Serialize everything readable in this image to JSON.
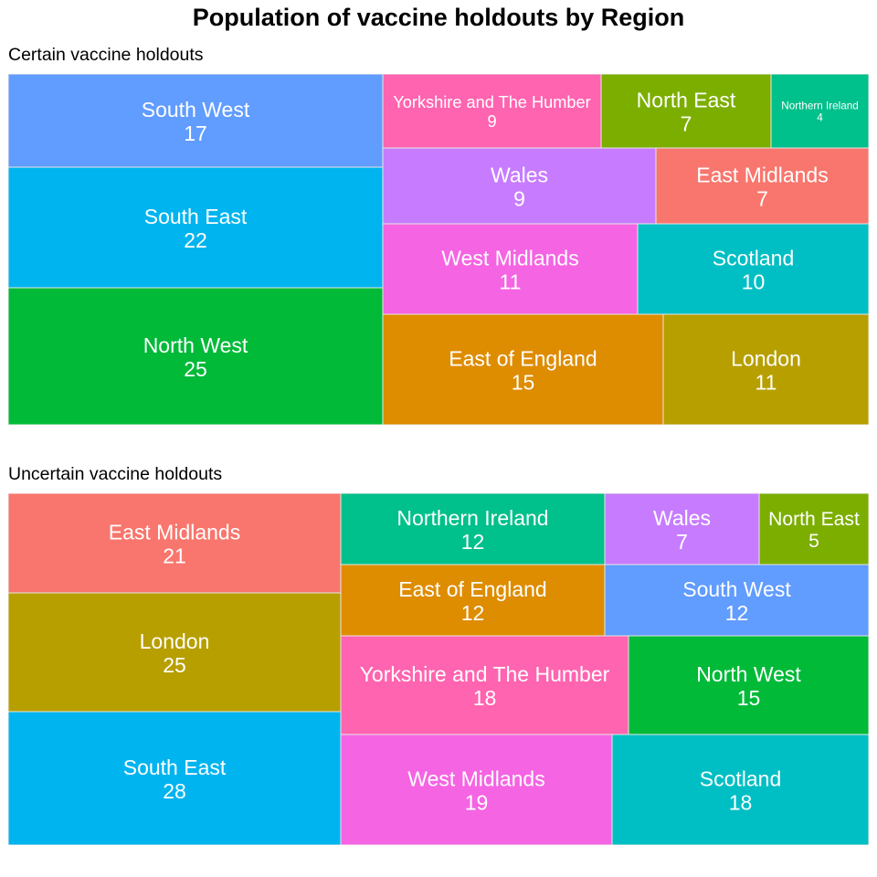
{
  "chart_data": {
    "type": "treemap",
    "title": "Population of vaccine holdouts by Region",
    "label_color": "#FFFFFF",
    "border_color": "#E6E6E6",
    "panels": [
      {
        "name": "Certain vaccine holdouts",
        "items": [
          {
            "region": "South West",
            "value": 17,
            "color": "#619CFF"
          },
          {
            "region": "South East",
            "value": 22,
            "color": "#00B4EF"
          },
          {
            "region": "North West",
            "value": 25,
            "color": "#00BA38"
          },
          {
            "region": "Yorkshire and The Humber",
            "value": 9,
            "color": "#FF64B0"
          },
          {
            "region": "Wales",
            "value": 9,
            "color": "#C77CFF"
          },
          {
            "region": "West Midlands",
            "value": 11,
            "color": "#F564E3"
          },
          {
            "region": "East of England",
            "value": 15,
            "color": "#DE8C00"
          },
          {
            "region": "North East",
            "value": 7,
            "color": "#7CAE00"
          },
          {
            "region": "Northern Ireland",
            "value": 4,
            "color": "#00C08B"
          },
          {
            "region": "East Midlands",
            "value": 7,
            "color": "#F8766D"
          },
          {
            "region": "Scotland",
            "value": 10,
            "color": "#00BFC4"
          },
          {
            "region": "London",
            "value": 11,
            "color": "#B79F00"
          }
        ]
      },
      {
        "name": "Uncertain vaccine holdouts",
        "items": [
          {
            "region": "East Midlands",
            "value": 21,
            "color": "#F8766D"
          },
          {
            "region": "London",
            "value": 25,
            "color": "#B79F00"
          },
          {
            "region": "South East",
            "value": 28,
            "color": "#00B4EF"
          },
          {
            "region": "Northern Ireland",
            "value": 12,
            "color": "#00C08B"
          },
          {
            "region": "East of England",
            "value": 12,
            "color": "#DE8C00"
          },
          {
            "region": "Yorkshire and The Humber",
            "value": 18,
            "color": "#FF64B0"
          },
          {
            "region": "West Midlands",
            "value": 19,
            "color": "#F564E3"
          },
          {
            "region": "Wales",
            "value": 7,
            "color": "#C77CFF"
          },
          {
            "region": "North East",
            "value": 5,
            "color": "#7CAE00"
          },
          {
            "region": "South West",
            "value": 12,
            "color": "#619CFF"
          },
          {
            "region": "North West",
            "value": 15,
            "color": "#00BA38"
          },
          {
            "region": "Scotland",
            "value": 18,
            "color": "#00BFC4"
          }
        ]
      }
    ]
  }
}
